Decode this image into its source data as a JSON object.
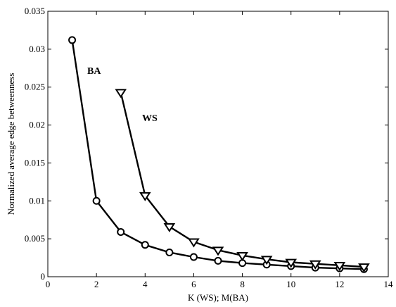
{
  "chart_data": {
    "type": "line",
    "title": "",
    "xlabel": "K (WS); M(BA)",
    "ylabel": "Normalized average edge betweenness",
    "xlim": [
      0,
      14
    ],
    "ylim": [
      0,
      0.035
    ],
    "xticks": [
      "0",
      "2",
      "4",
      "6",
      "8",
      "10",
      "12",
      "14"
    ],
    "yticks": [
      "0",
      "0.005",
      "0.01",
      "0.015",
      "0.02",
      "0.025",
      "0.03",
      "0.035"
    ],
    "grid": false,
    "series": [
      {
        "name": "BA",
        "marker": "circle",
        "color": "#000000",
        "x": [
          1,
          2,
          3,
          4,
          5,
          6,
          7,
          8,
          9,
          10,
          11,
          12,
          13
        ],
        "y": [
          0.0312,
          0.01,
          0.0059,
          0.0042,
          0.0032,
          0.0026,
          0.0021,
          0.0018,
          0.0016,
          0.0014,
          0.0012,
          0.0011,
          0.001
        ]
      },
      {
        "name": "WS",
        "marker": "triangle-down",
        "color": "#000000",
        "x": [
          3,
          4,
          5,
          6,
          7,
          8,
          9,
          10,
          11,
          12,
          13
        ],
        "y": [
          0.0243,
          0.0107,
          0.0066,
          0.0046,
          0.0035,
          0.0028,
          0.0023,
          0.0019,
          0.0017,
          0.0015,
          0.0013
        ]
      }
    ]
  }
}
